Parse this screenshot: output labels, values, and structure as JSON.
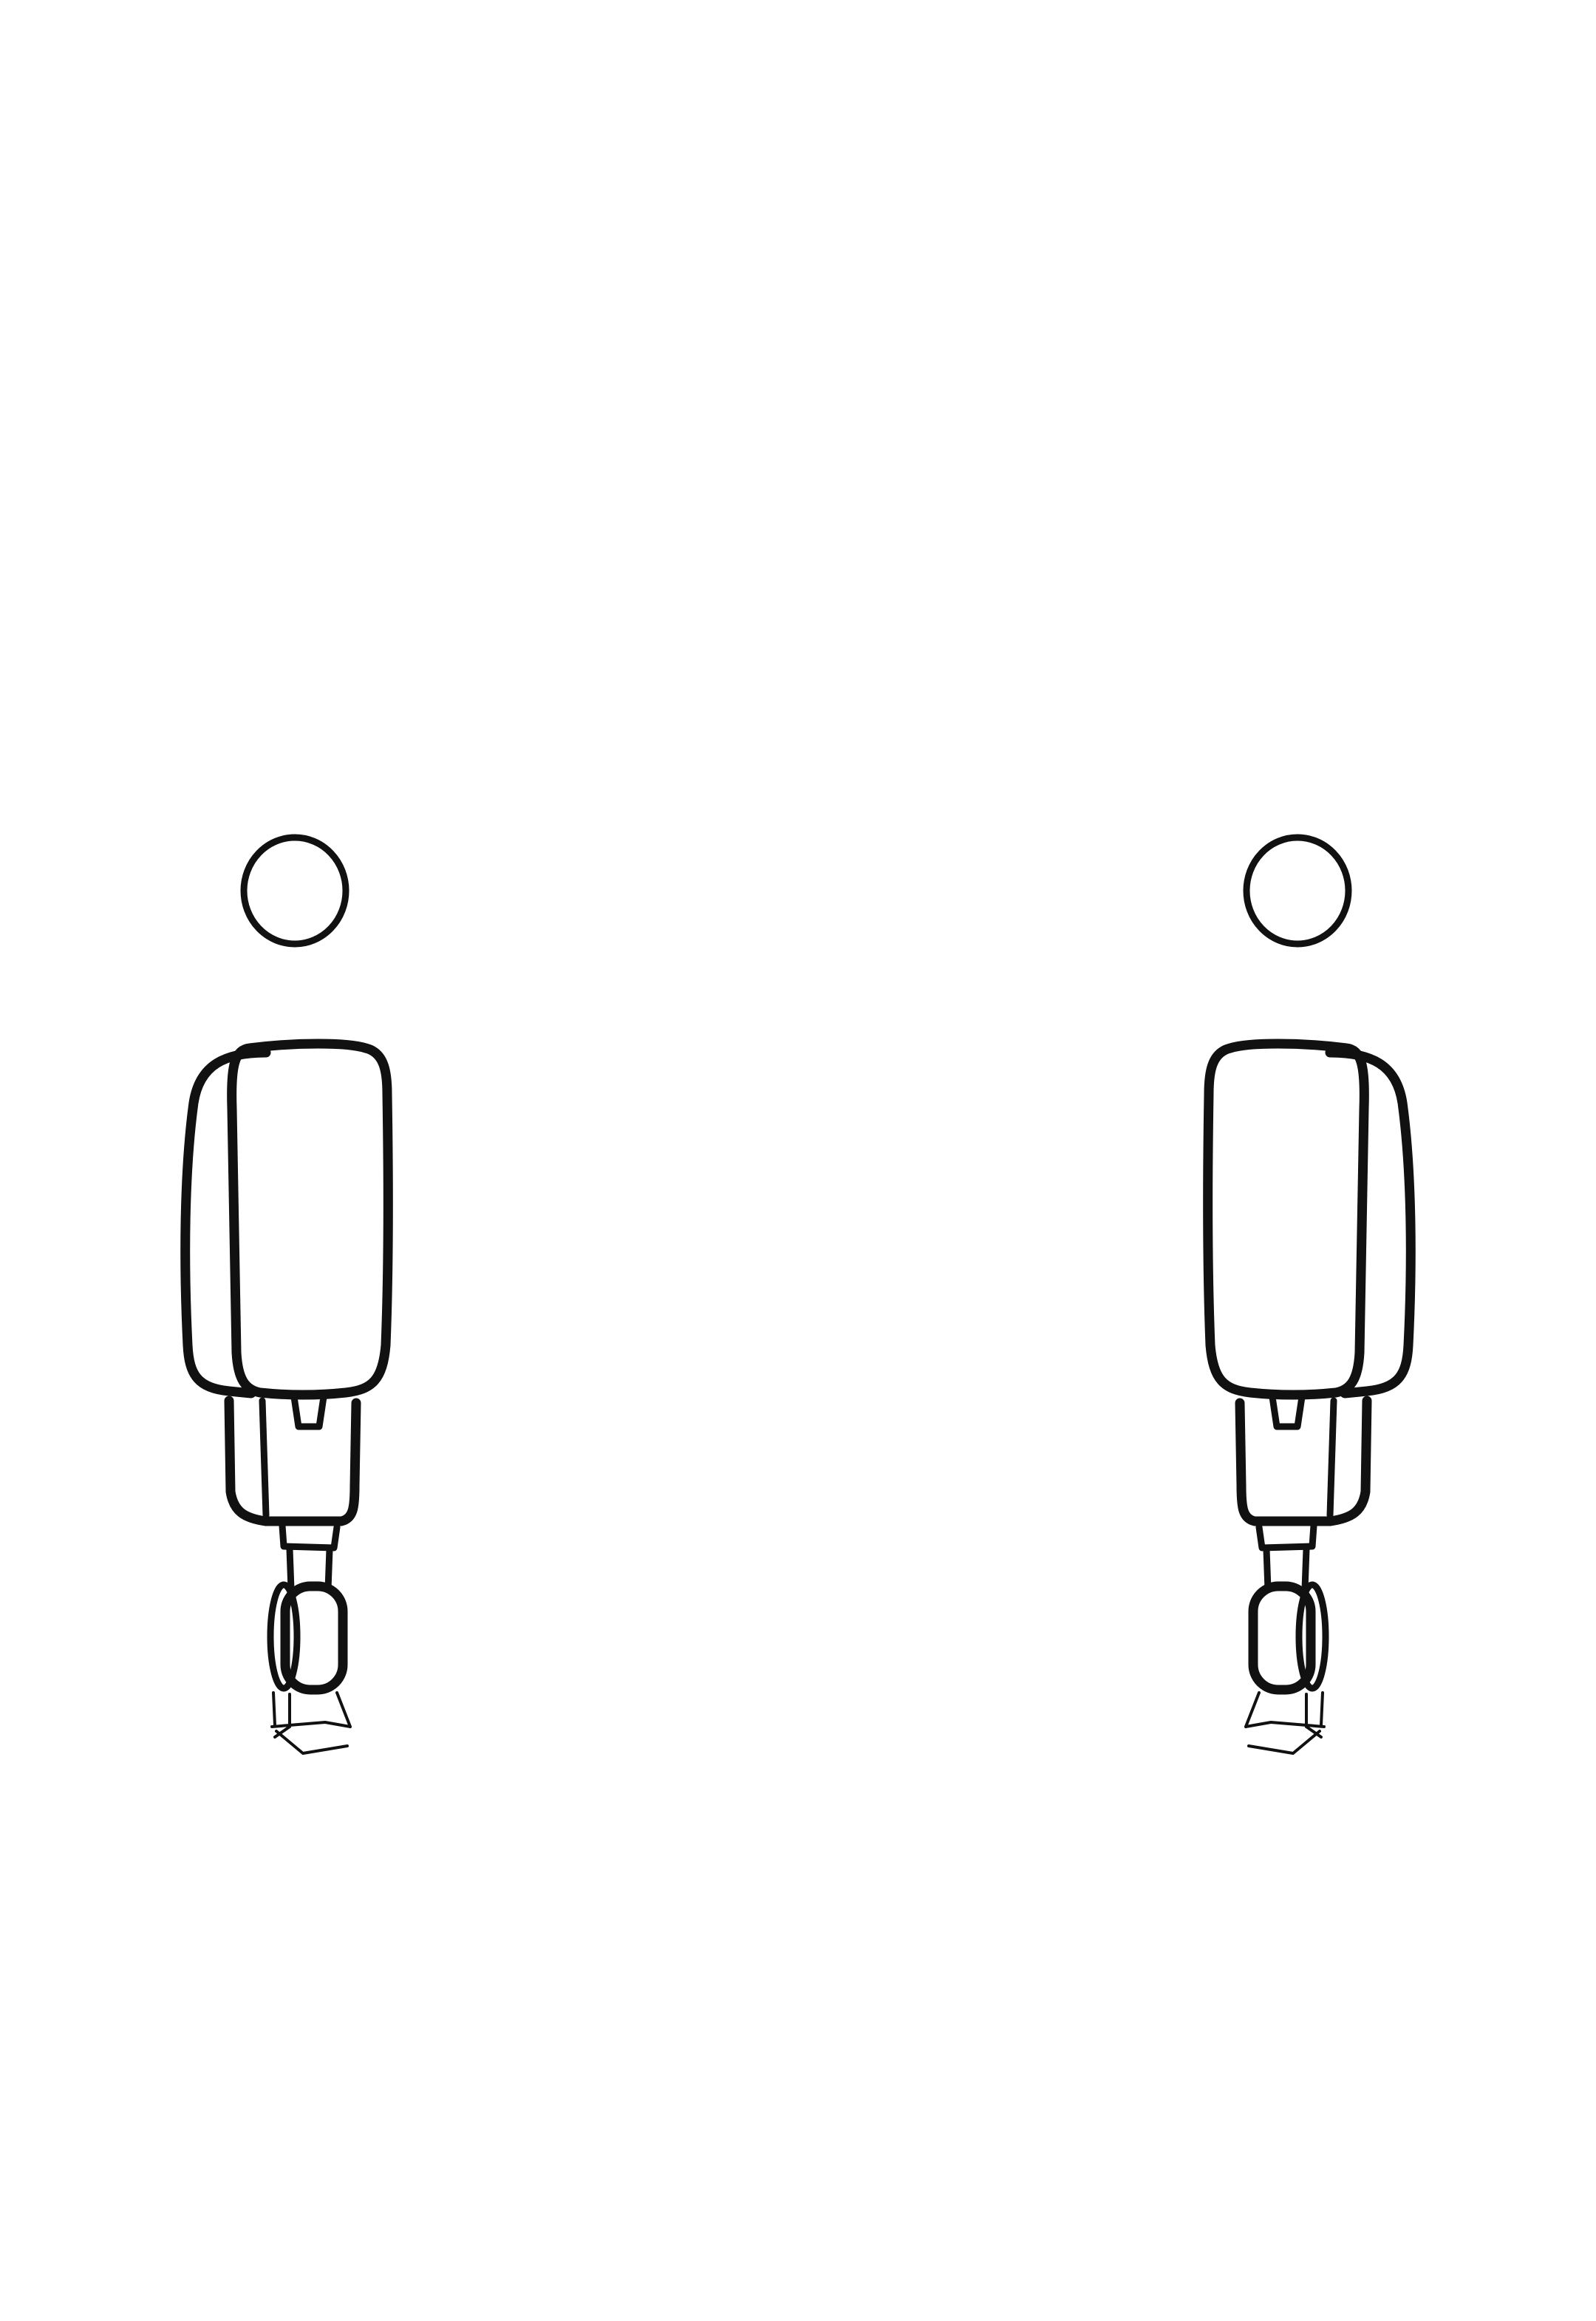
{
  "figures": [
    {
      "id": "figure-left",
      "facing": "right"
    },
    {
      "id": "figure-right",
      "facing": "left"
    }
  ],
  "colors": {
    "background": "#ffffff",
    "ink": "#111111"
  }
}
